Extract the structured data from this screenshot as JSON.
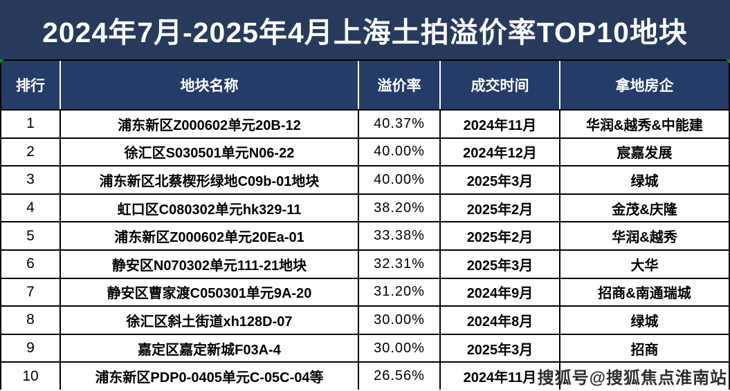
{
  "title": "2024年7月-2025年4月上海土拍溢价率TOP10地块",
  "watermark": "搜狐号@搜狐焦点淮南站",
  "colors": {
    "title_bg": "#283a5c",
    "header_bg": "#253c68",
    "row_bg": "#ffffff",
    "border": "#000000",
    "header_text": "#ffffff",
    "corner_artifact_green": "#1b8a1b"
  },
  "chart_data": {
    "type": "table",
    "title": "2024年7月-2025年4月上海土拍溢价率TOP10地块",
    "columns": [
      "排行",
      "地块名称",
      "溢价率",
      "成交时间",
      "拿地房企"
    ],
    "rows": [
      {
        "rank": "1",
        "name": "浦东新区Z000602单元20B-12",
        "premium": "40.37%",
        "date": "2024年11月",
        "developer": "华润&越秀&中能建"
      },
      {
        "rank": "2",
        "name": "徐汇区S030501单元N06-22",
        "premium": "40.00%",
        "date": "2024年12月",
        "developer": "宸嘉发展"
      },
      {
        "rank": "3",
        "name": "浦东新区北蔡楔形绿地C09b-01地块",
        "premium": "40.00%",
        "date": "2025年3月",
        "developer": "绿城"
      },
      {
        "rank": "4",
        "name": "虹口区C080302单元hk329-11",
        "premium": "38.20%",
        "date": "2025年2月",
        "developer": "金茂&庆隆"
      },
      {
        "rank": "5",
        "name": "浦东新区Z000602单元20Ea-01",
        "premium": "33.38%",
        "date": "2025年2月",
        "developer": "华润&越秀"
      },
      {
        "rank": "6",
        "name": "静安区N070302单元111-21地块",
        "premium": "32.31%",
        "date": "2025年3月",
        "developer": "大华"
      },
      {
        "rank": "7",
        "name": "静安区曹家渡C050301单元9A-20",
        "premium": "31.20%",
        "date": "2024年9月",
        "developer": "招商&南通瑞城"
      },
      {
        "rank": "8",
        "name": "徐汇区斜土街道xh128D-07",
        "premium": "30.00%",
        "date": "2024年8月",
        "developer": "绿城"
      },
      {
        "rank": "9",
        "name": "嘉定区嘉定新城F03A-4",
        "premium": "30.00%",
        "date": "2025年3月",
        "developer": "招商"
      },
      {
        "rank": "10",
        "name": "浦东新区PDP0-0405单元C-05C-04等",
        "premium": "26.56%",
        "date": "2024年11月",
        "developer": ""
      }
    ]
  }
}
